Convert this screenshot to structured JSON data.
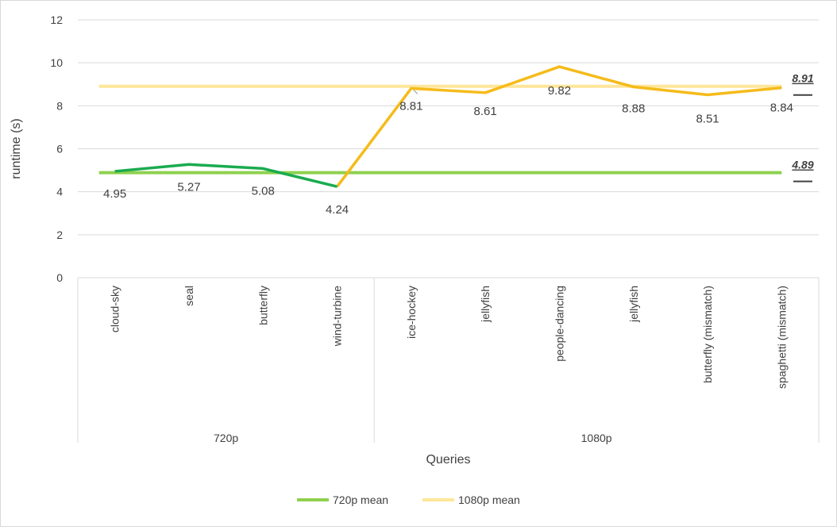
{
  "chart_data": {
    "type": "line",
    "title": "",
    "xlabel": "Queries",
    "ylabel": "runtime (s)",
    "ylim": [
      0,
      12
    ],
    "yticks": [
      0,
      2,
      4,
      6,
      8,
      10,
      12
    ],
    "grid": true,
    "legend_position": "bottom",
    "groups": [
      {
        "name": "720p",
        "categories": [
          "cloud-sky",
          "seal",
          "butterfly",
          "wind-turbine"
        ]
      },
      {
        "name": "1080p",
        "categories": [
          "ice-hockey",
          "jellyfish",
          "people-dancing",
          "jellyfish",
          "butterfly (mismatch)",
          "spaghetti (mismatch)"
        ]
      }
    ],
    "categories": [
      "cloud-sky",
      "seal",
      "butterfly",
      "wind-turbine",
      "ice-hockey",
      "jellyfish",
      "people-dancing",
      "jellyfish",
      "butterfly (mismatch)",
      "spaghetti (mismatch)"
    ],
    "series": [
      {
        "key": "s720",
        "values": [
          4.95,
          5.27,
          5.08,
          4.24,
          null,
          null,
          null,
          null,
          null,
          null
        ],
        "color": "#1aab4f"
      },
      {
        "key": "s1080",
        "values": [
          null,
          null,
          null,
          4.24,
          8.81,
          8.61,
          9.82,
          8.88,
          8.51,
          8.84
        ],
        "color": "#f5bb1a"
      },
      {
        "name": "720p mean",
        "value": 4.89,
        "color": "#8fd14f",
        "label": "4.89"
      },
      {
        "name": "1080p mean",
        "value": 8.91,
        "color": "#ffe699",
        "label": "8.91"
      }
    ],
    "data_labels": [
      "4.95",
      "5.27",
      "5.08",
      "4.24",
      "8.81",
      "8.61",
      "9.82",
      "8.88",
      "8.51",
      "8.84"
    ]
  }
}
